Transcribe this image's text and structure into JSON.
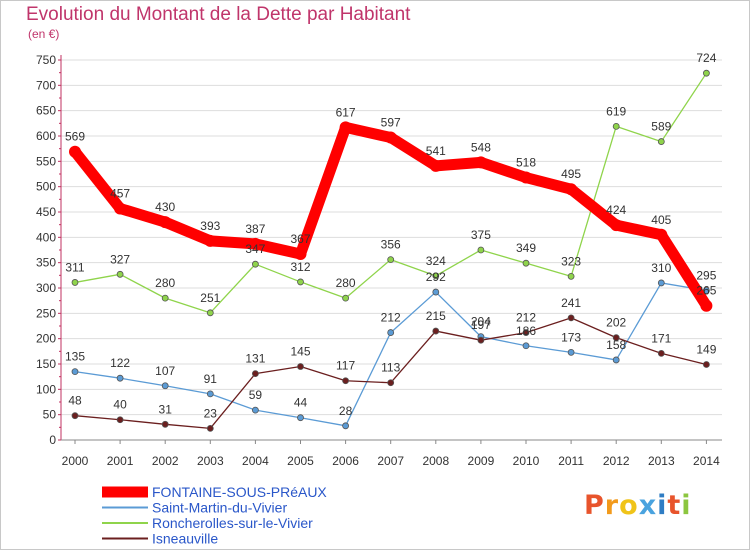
{
  "chart_data": {
    "type": "line",
    "title": "Evolution du Montant de la Dette par Habitant",
    "subtitle": "(en €)",
    "x": [
      "2000",
      "2001",
      "2002",
      "2003",
      "2004",
      "2005",
      "2006",
      "2007",
      "2008",
      "2009",
      "2010",
      "2011",
      "2012",
      "2013",
      "2014"
    ],
    "ylim": [
      0,
      750
    ],
    "yticks": [
      0,
      50,
      100,
      150,
      200,
      250,
      300,
      350,
      400,
      450,
      500,
      550,
      600,
      650,
      700,
      750
    ],
    "grid": "horizontal",
    "legend_position": "bottom-left",
    "series": [
      {
        "name": "FONTAINE-SOUS-PRéAUX",
        "color": "#ff0000",
        "values": [
          569,
          457,
          430,
          393,
          387,
          367,
          617,
          597,
          541,
          548,
          518,
          495,
          424,
          405,
          265
        ]
      },
      {
        "name": "Saint-Martin-du-Vivier",
        "color": "#5b9bd5",
        "values": [
          135,
          122,
          107,
          91,
          59,
          44,
          28,
          212,
          292,
          204,
          186,
          173,
          158,
          310,
          295
        ]
      },
      {
        "name": "Roncherolles-sur-le-Vivier",
        "color": "#8fd44b",
        "values": [
          311,
          327,
          280,
          251,
          347,
          312,
          280,
          356,
          324,
          375,
          349,
          323,
          619,
          589,
          724
        ]
      },
      {
        "name": "Isneauville",
        "color": "#6b1f1f",
        "values": [
          48,
          40,
          31,
          23,
          131,
          145,
          117,
          113,
          215,
          197,
          212,
          241,
          202,
          171,
          149
        ]
      }
    ]
  },
  "labels": [
    [
      null,
      null,
      null,
      null,
      null,
      "367",
      null,
      null,
      null,
      null,
      null,
      null,
      null,
      null,
      "265"
    ],
    [
      null,
      null,
      null,
      null,
      null,
      null,
      null,
      null,
      null,
      null,
      "186",
      null,
      null,
      null,
      null
    ],
    [
      null,
      null,
      null,
      null,
      null,
      null,
      null,
      null,
      null,
      null,
      null,
      null,
      null,
      null,
      null
    ],
    [
      null,
      null,
      null,
      null,
      null,
      null,
      null,
      null,
      null,
      null,
      null,
      null,
      null,
      null,
      null
    ]
  ],
  "logo": {
    "text": "Proxiti"
  },
  "colors": {
    "grid": "#dddddd",
    "title": "#c0356b",
    "legend_text": "#2a57c9"
  }
}
